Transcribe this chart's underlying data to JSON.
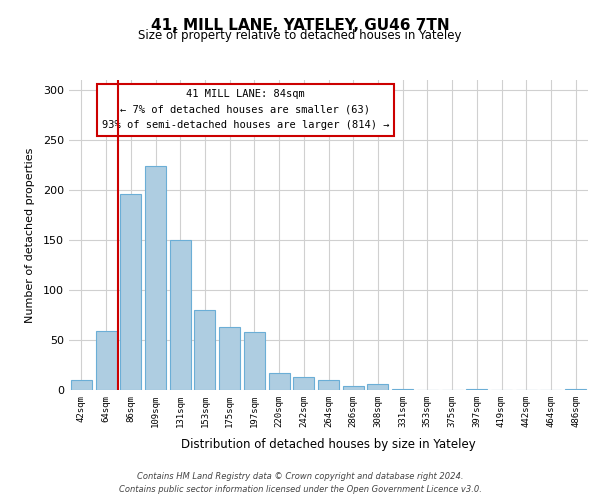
{
  "title": "41, MILL LANE, YATELEY, GU46 7TN",
  "subtitle": "Size of property relative to detached houses in Yateley",
  "xlabel": "Distribution of detached houses by size in Yateley",
  "ylabel": "Number of detached properties",
  "bar_labels": [
    "42sqm",
    "64sqm",
    "86sqm",
    "109sqm",
    "131sqm",
    "153sqm",
    "175sqm",
    "197sqm",
    "220sqm",
    "242sqm",
    "264sqm",
    "286sqm",
    "308sqm",
    "331sqm",
    "353sqm",
    "375sqm",
    "397sqm",
    "419sqm",
    "442sqm",
    "464sqm",
    "486sqm"
  ],
  "bar_values": [
    10,
    59,
    196,
    224,
    150,
    80,
    63,
    58,
    17,
    13,
    10,
    4,
    6,
    1,
    0,
    0,
    1,
    0,
    0,
    0,
    1
  ],
  "bar_color": "#aecde1",
  "bar_edge_color": "#6baed6",
  "vline_x": 1.5,
  "vline_color": "#cc0000",
  "ylim": [
    0,
    310
  ],
  "yticks": [
    0,
    50,
    100,
    150,
    200,
    250,
    300
  ],
  "annotation_title": "41 MILL LANE: 84sqm",
  "annotation_line1": "← 7% of detached houses are smaller (63)",
  "annotation_line2": "93% of semi-detached houses are larger (814) →",
  "annotation_box_color": "#ffffff",
  "annotation_box_edge": "#cc0000",
  "footer_line1": "Contains HM Land Registry data © Crown copyright and database right 2024.",
  "footer_line2": "Contains public sector information licensed under the Open Government Licence v3.0.",
  "background_color": "#ffffff",
  "grid_color": "#d0d0d0"
}
